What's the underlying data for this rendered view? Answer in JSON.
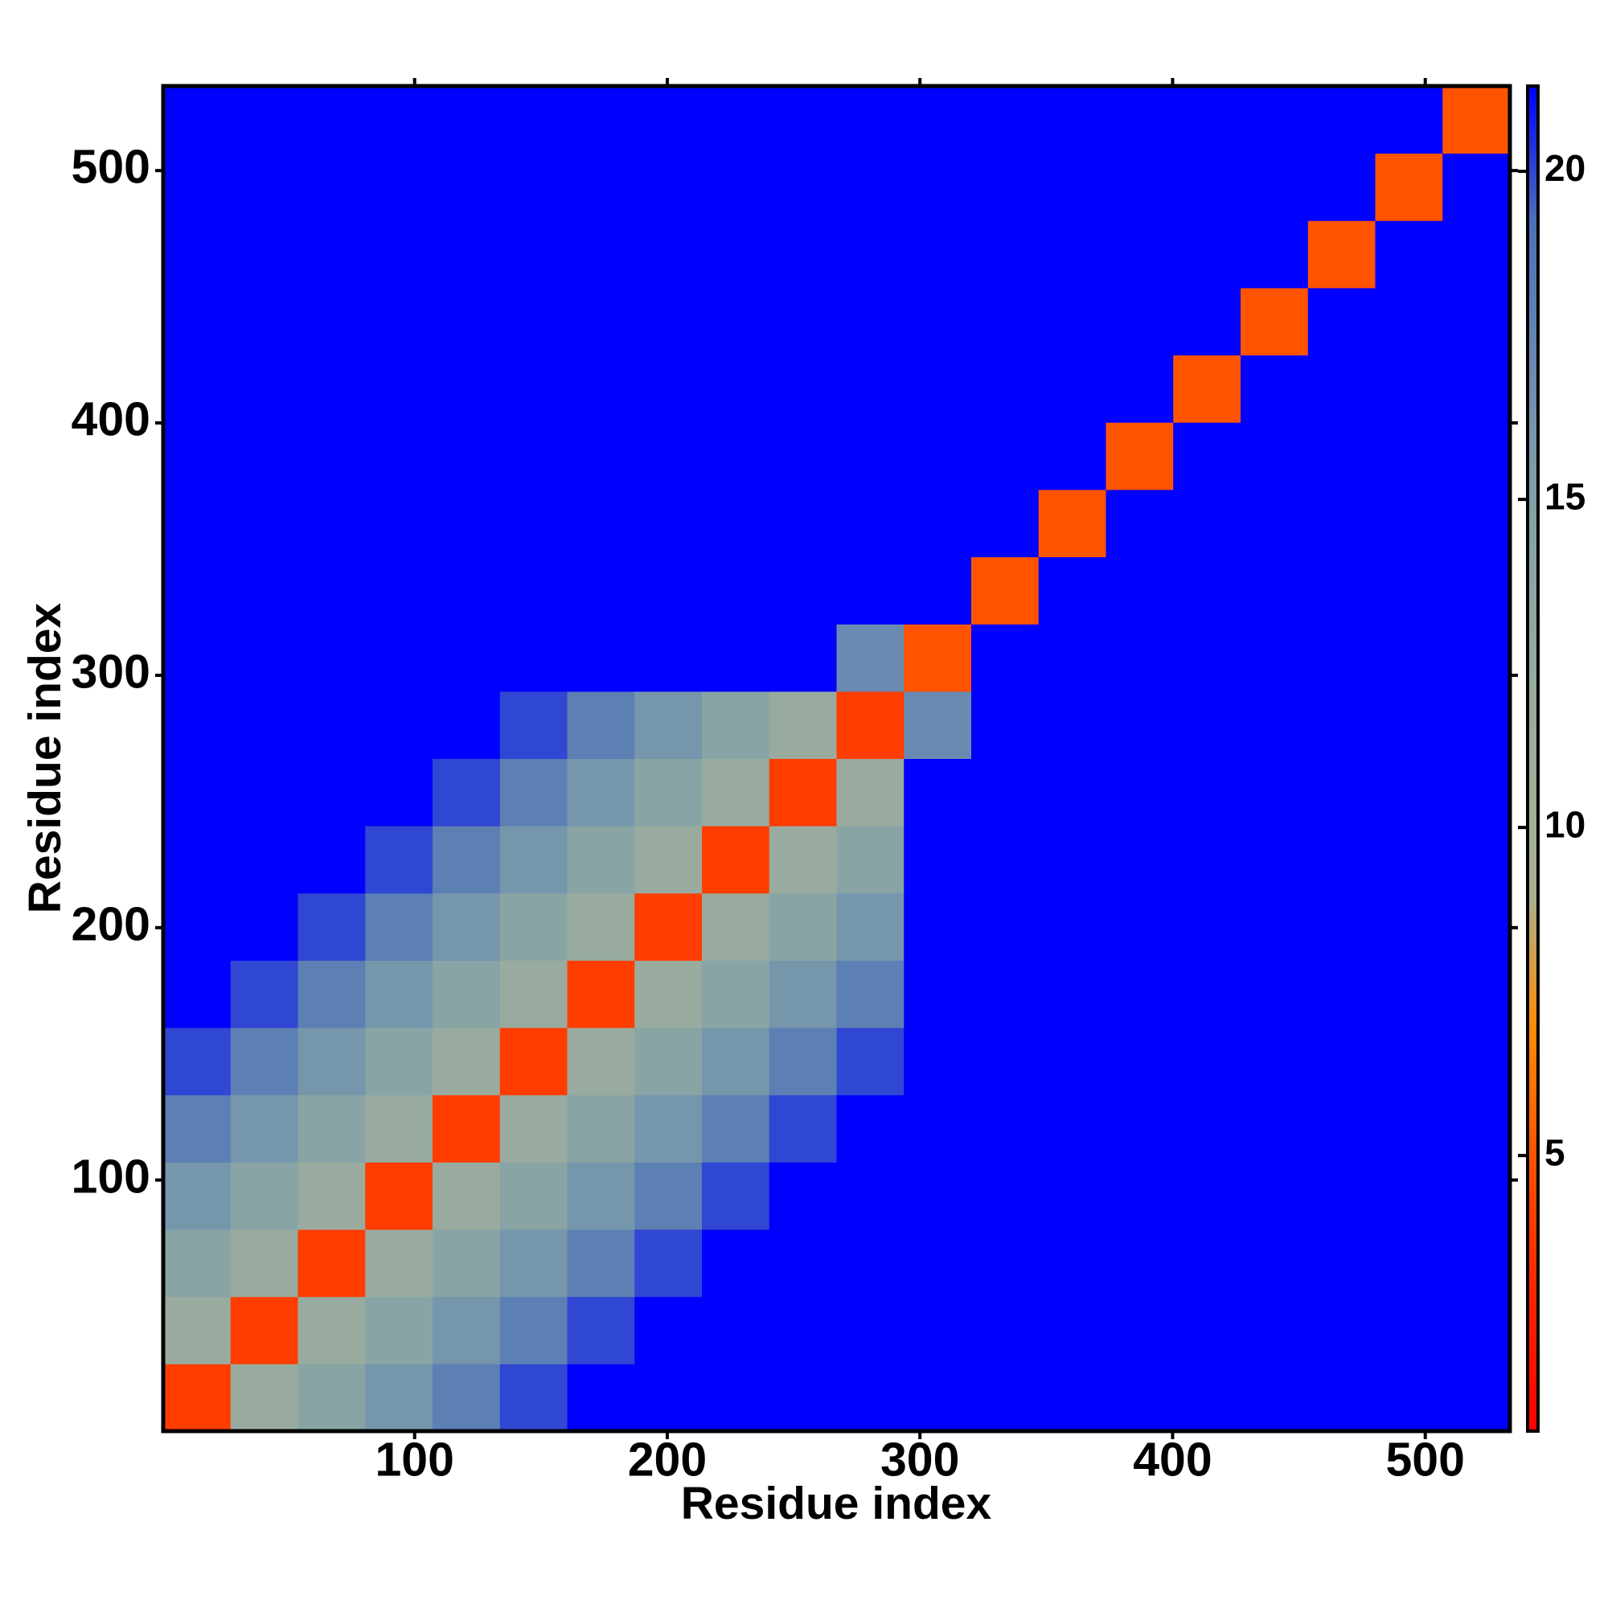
{
  "chart_data": {
    "type": "heatmap",
    "xlabel": "Residue index",
    "ylabel": "Residue index",
    "xlim": [
      0.5,
      533.5
    ],
    "ylim": [
      0.5,
      533.5
    ],
    "xticks": [
      100,
      200,
      300,
      400,
      500
    ],
    "yticks": [
      100,
      200,
      300,
      400,
      500
    ],
    "zlim": [
      0.8,
      21.3
    ],
    "zticks": [
      5,
      10,
      15,
      20
    ],
    "colorscale": [
      "#ff0000",
      "#ff2400",
      "#ff5000",
      "#ff8c00",
      "#a8b090",
      "#a0ae9a",
      "#90a8a2",
      "#80a0a8",
      "#6888b2",
      "#4a70b8",
      "#0000ff"
    ],
    "z": [
      [
        4,
        12,
        14,
        16,
        18,
        20,
        21.3,
        21.3,
        21.3,
        21.3,
        21.3,
        21.3,
        21.3,
        21.3,
        21.3,
        21.3,
        21.3,
        21.3,
        21.3,
        21.3
      ],
      [
        12,
        4,
        12,
        14,
        16,
        18,
        20,
        21.3,
        21.3,
        21.3,
        21.3,
        21.3,
        21.3,
        21.3,
        21.3,
        21.3,
        21.3,
        21.3,
        21.3,
        21.3
      ],
      [
        14,
        12,
        4,
        12,
        14,
        16,
        18,
        20,
        21.3,
        21.3,
        21.3,
        21.3,
        21.3,
        21.3,
        21.3,
        21.3,
        21.3,
        21.3,
        21.3,
        21.3
      ],
      [
        16,
        14,
        12,
        4,
        12,
        14,
        16,
        18,
        20,
        21.3,
        21.3,
        21.3,
        21.3,
        21.3,
        21.3,
        21.3,
        21.3,
        21.3,
        21.3,
        21.3
      ],
      [
        18,
        16,
        14,
        12,
        4,
        12,
        14,
        16,
        18,
        20,
        21.3,
        21.3,
        21.3,
        21.3,
        21.3,
        21.3,
        21.3,
        21.3,
        21.3,
        21.3
      ],
      [
        20,
        18,
        16,
        14,
        12,
        4,
        12,
        14,
        16,
        18,
        20,
        21.3,
        21.3,
        21.3,
        21.3,
        21.3,
        21.3,
        21.3,
        21.3,
        21.3
      ],
      [
        21.3,
        20,
        18,
        16,
        14,
        12,
        4,
        12,
        14,
        16,
        18,
        21.3,
        21.3,
        21.3,
        21.3,
        21.3,
        21.3,
        21.3,
        21.3,
        21.3
      ],
      [
        21.3,
        21.3,
        20,
        18,
        16,
        14,
        12,
        4,
        12,
        14,
        16,
        21.3,
        21.3,
        21.3,
        21.3,
        21.3,
        21.3,
        21.3,
        21.3,
        21.3
      ],
      [
        21.3,
        21.3,
        21.3,
        20,
        18,
        16,
        14,
        12,
        4,
        12,
        14,
        21.3,
        21.3,
        21.3,
        21.3,
        21.3,
        21.3,
        21.3,
        21.3,
        21.3
      ],
      [
        21.3,
        21.3,
        21.3,
        21.3,
        20,
        18,
        16,
        14,
        12,
        4,
        12,
        21.3,
        21.3,
        21.3,
        21.3,
        21.3,
        21.3,
        21.3,
        21.3,
        21.3
      ],
      [
        21.3,
        21.3,
        21.3,
        21.3,
        21.3,
        20,
        18,
        16,
        14,
        12,
        4,
        17,
        21.3,
        21.3,
        21.3,
        21.3,
        21.3,
        21.3,
        21.3,
        21.3
      ],
      [
        21.3,
        21.3,
        21.3,
        21.3,
        21.3,
        21.3,
        21.3,
        21.3,
        21.3,
        21.3,
        17,
        5,
        21.3,
        21.3,
        21.3,
        21.3,
        21.3,
        21.3,
        21.3,
        21.3
      ],
      [
        21.3,
        21.3,
        21.3,
        21.3,
        21.3,
        21.3,
        21.3,
        21.3,
        21.3,
        21.3,
        21.3,
        21.3,
        5,
        21.3,
        21.3,
        21.3,
        21.3,
        21.3,
        21.3,
        21.3
      ],
      [
        21.3,
        21.3,
        21.3,
        21.3,
        21.3,
        21.3,
        21.3,
        21.3,
        21.3,
        21.3,
        21.3,
        21.3,
        21.3,
        5,
        21.3,
        21.3,
        21.3,
        21.3,
        21.3,
        21.3
      ],
      [
        21.3,
        21.3,
        21.3,
        21.3,
        21.3,
        21.3,
        21.3,
        21.3,
        21.3,
        21.3,
        21.3,
        21.3,
        21.3,
        21.3,
        5,
        21.3,
        21.3,
        21.3,
        21.3,
        21.3
      ],
      [
        21.3,
        21.3,
        21.3,
        21.3,
        21.3,
        21.3,
        21.3,
        21.3,
        21.3,
        21.3,
        21.3,
        21.3,
        21.3,
        21.3,
        21.3,
        5,
        21.3,
        21.3,
        21.3,
        21.3
      ],
      [
        21.3,
        21.3,
        21.3,
        21.3,
        21.3,
        21.3,
        21.3,
        21.3,
        21.3,
        21.3,
        21.3,
        21.3,
        21.3,
        21.3,
        21.3,
        21.3,
        5,
        21.3,
        21.3,
        21.3
      ],
      [
        21.3,
        21.3,
        21.3,
        21.3,
        21.3,
        21.3,
        21.3,
        21.3,
        21.3,
        21.3,
        21.3,
        21.3,
        21.3,
        21.3,
        21.3,
        21.3,
        21.3,
        5,
        21.3,
        21.3
      ],
      [
        21.3,
        21.3,
        21.3,
        21.3,
        21.3,
        21.3,
        21.3,
        21.3,
        21.3,
        21.3,
        21.3,
        21.3,
        21.3,
        21.3,
        21.3,
        21.3,
        21.3,
        21.3,
        5,
        21.3
      ],
      [
        21.3,
        21.3,
        21.3,
        21.3,
        21.3,
        21.3,
        21.3,
        21.3,
        21.3,
        21.3,
        21.3,
        21.3,
        21.3,
        21.3,
        21.3,
        21.3,
        21.3,
        21.3,
        21.3,
        5
      ]
    ]
  }
}
